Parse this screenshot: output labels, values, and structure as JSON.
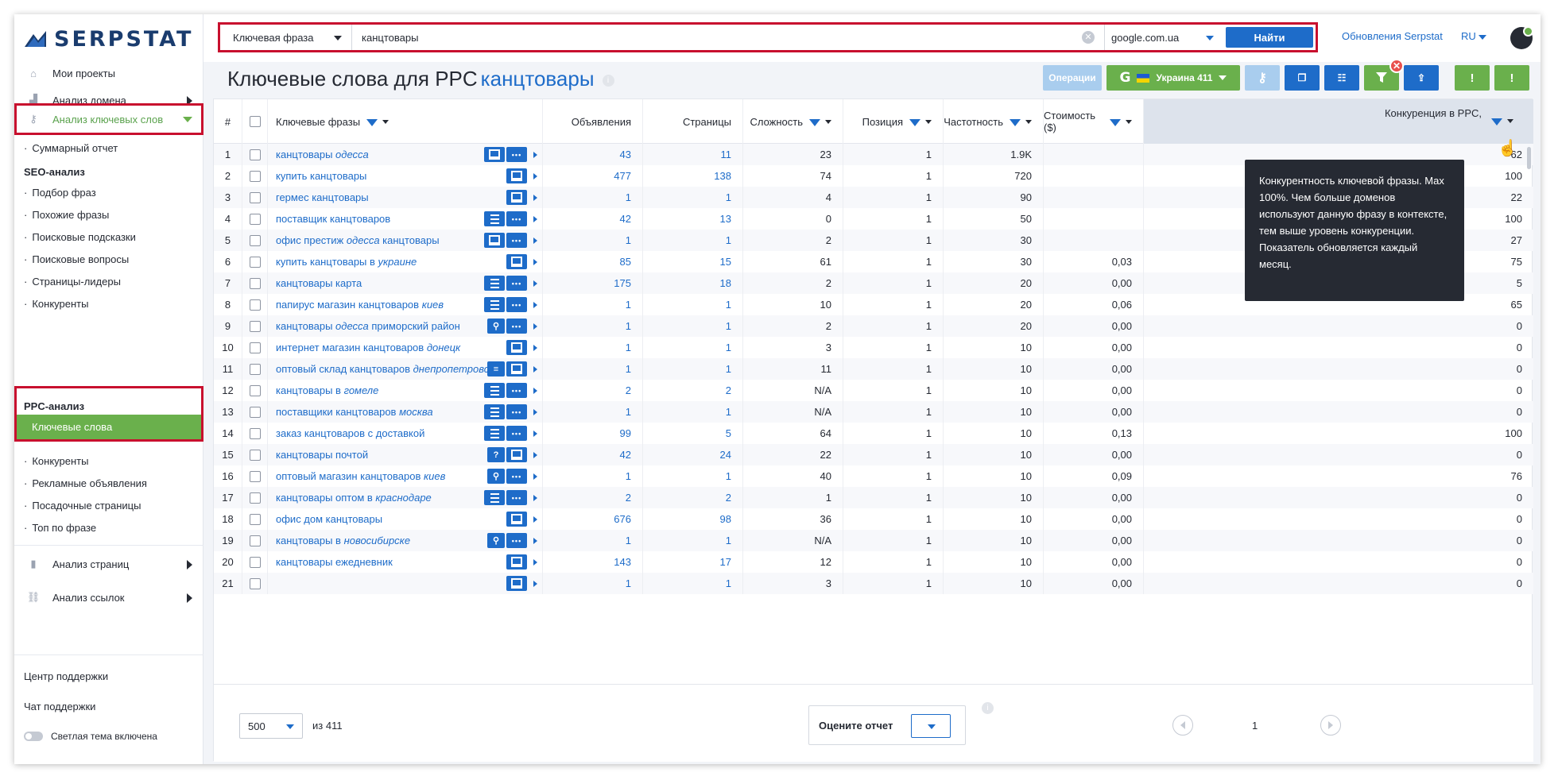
{
  "brand": {
    "name": "SERPSTAT"
  },
  "sidebar": {
    "my_projects": "Мои проекты",
    "domain_analysis": "Анализ домена",
    "keyword_analysis": "Анализ ключевых слов",
    "summary_report": "Суммарный отчет",
    "seo_head": "SEO-анализ",
    "seo_items": [
      "Подбор фраз",
      "Похожие фразы",
      "Поисковые подсказки",
      "Поисковые вопросы",
      "Страницы-лидеры",
      "Конкуренты"
    ],
    "ppc_head": "PPC-анализ",
    "ppc_active": "Ключевые слова",
    "ppc_items": [
      "Конкуренты",
      "Рекламные объявления",
      "Посадочные страницы",
      "Топ по фразе"
    ],
    "pages_analysis": "Анализ страниц",
    "links_analysis": "Анализ ссылок",
    "support_center": "Центр поддержки",
    "support_chat": "Чат поддержки",
    "theme_label": "Светлая тема включена"
  },
  "topbar": {
    "search_type": "Ключевая фраза",
    "search_value": "канцтовары",
    "database": "google.com.ua",
    "search_button": "Найти",
    "updates_link": "Обновления Serpstat",
    "language": "RU"
  },
  "page": {
    "title": "Ключевые слова для PPC",
    "keyword": "канцтовары"
  },
  "toolbar": {
    "operations": "Операции",
    "region": "Украина 411"
  },
  "table": {
    "headers": {
      "num": "#",
      "keywords": "Ключевые фразы",
      "ads": "Объявления",
      "pages": "Страницы",
      "difficulty": "Сложность",
      "position": "Позиция",
      "frequency": "Частотность",
      "cost": "Стоимость ($)",
      "competition": "Конкуренция в PPC,"
    },
    "rows": [
      {
        "n": "1",
        "kw": [
          [
            "канцтовары ",
            0
          ],
          [
            "одесса",
            1
          ]
        ],
        "btns": [
          "ad",
          "dots"
        ],
        "ads": "43",
        "pages": "11",
        "diff": "23",
        "pos": "1",
        "freq": "1.9K",
        "cost": "",
        "comp": "62"
      },
      {
        "n": "2",
        "kw": [
          [
            "купить канцтовары",
            0
          ]
        ],
        "btns": [
          "ad"
        ],
        "ads": "477",
        "pages": "138",
        "diff": "74",
        "pos": "1",
        "freq": "720",
        "cost": "",
        "comp": "100"
      },
      {
        "n": "3",
        "kw": [
          [
            "гермес канцтовары",
            0
          ]
        ],
        "btns": [
          "ad"
        ],
        "ads": "1",
        "pages": "1",
        "diff": "4",
        "pos": "1",
        "freq": "90",
        "cost": "",
        "comp": "22"
      },
      {
        "n": "4",
        "kw": [
          [
            "поставщик канцтоваров",
            0
          ]
        ],
        "btns": [
          "list",
          "dots"
        ],
        "ads": "42",
        "pages": "13",
        "diff": "0",
        "pos": "1",
        "freq": "50",
        "cost": "",
        "comp": "100"
      },
      {
        "n": "5",
        "kw": [
          [
            "офис престиж ",
            0
          ],
          [
            "одесса",
            1
          ],
          [
            " канцтовары",
            0
          ]
        ],
        "btns": [
          "ad",
          "dots"
        ],
        "ads": "1",
        "pages": "1",
        "diff": "2",
        "pos": "1",
        "freq": "30",
        "cost": "",
        "comp": "27"
      },
      {
        "n": "6",
        "kw": [
          [
            "купить канцтовары в ",
            0
          ],
          [
            "украине",
            1
          ]
        ],
        "btns": [
          "ad"
        ],
        "ads": "85",
        "pages": "15",
        "diff": "61",
        "pos": "1",
        "freq": "30",
        "cost": "0,03",
        "comp": "75"
      },
      {
        "n": "7",
        "kw": [
          [
            "канцтовары карта",
            0
          ]
        ],
        "btns": [
          "list",
          "dots"
        ],
        "ads": "175",
        "pages": "18",
        "diff": "2",
        "pos": "1",
        "freq": "20",
        "cost": "0,00",
        "comp": "5"
      },
      {
        "n": "8",
        "kw": [
          [
            "папирус магазин канцтоваров ",
            0
          ],
          [
            "киев",
            1
          ]
        ],
        "btns": [
          "list",
          "dots"
        ],
        "ads": "1",
        "pages": "1",
        "diff": "10",
        "pos": "1",
        "freq": "20",
        "cost": "0,06",
        "comp": "65"
      },
      {
        "n": "9",
        "kw": [
          [
            "канцтовары ",
            0
          ],
          [
            "одесса",
            1
          ],
          [
            " приморский район",
            0
          ]
        ],
        "btns": [
          "pin",
          "dots"
        ],
        "ads": "1",
        "pages": "1",
        "diff": "2",
        "pos": "1",
        "freq": "20",
        "cost": "0,00",
        "comp": "0"
      },
      {
        "n": "10",
        "kw": [
          [
            "интернет магазин канцтоваров ",
            0
          ],
          [
            "донецк",
            1
          ]
        ],
        "btns": [
          "ad"
        ],
        "ads": "1",
        "pages": "1",
        "diff": "3",
        "pos": "1",
        "freq": "10",
        "cost": "0,00",
        "comp": "0"
      },
      {
        "n": "11",
        "kw": [
          [
            "оптовый склад канцтоваров ",
            0
          ],
          [
            "днепропетровск",
            1
          ]
        ],
        "btns": [
          "eq",
          "ad"
        ],
        "ads": "1",
        "pages": "1",
        "diff": "11",
        "pos": "1",
        "freq": "10",
        "cost": "0,00",
        "comp": "0"
      },
      {
        "n": "12",
        "kw": [
          [
            "канцтовары в ",
            0
          ],
          [
            "гомеле",
            1
          ]
        ],
        "btns": [
          "list",
          "dots"
        ],
        "ads": "2",
        "pages": "2",
        "diff": "N/A",
        "pos": "1",
        "freq": "10",
        "cost": "0,00",
        "comp": "0"
      },
      {
        "n": "13",
        "kw": [
          [
            "поставщики канцтоваров ",
            0
          ],
          [
            "москва",
            1
          ]
        ],
        "btns": [
          "list",
          "dots"
        ],
        "ads": "1",
        "pages": "1",
        "diff": "N/A",
        "pos": "1",
        "freq": "10",
        "cost": "0,00",
        "comp": "0"
      },
      {
        "n": "14",
        "kw": [
          [
            "заказ канцтоваров с доставкой",
            0
          ]
        ],
        "btns": [
          "list",
          "dots"
        ],
        "ads": "99",
        "pages": "5",
        "diff": "64",
        "pos": "1",
        "freq": "10",
        "cost": "0,13",
        "comp": "100"
      },
      {
        "n": "15",
        "kw": [
          [
            "канцтовары почтой",
            0
          ]
        ],
        "btns": [
          "q",
          "ad"
        ],
        "ads": "42",
        "pages": "24",
        "diff": "22",
        "pos": "1",
        "freq": "10",
        "cost": "0,00",
        "comp": "0"
      },
      {
        "n": "16",
        "kw": [
          [
            "оптовый магазин канцтоваров ",
            0
          ],
          [
            "киев",
            1
          ]
        ],
        "btns": [
          "pin",
          "dots"
        ],
        "ads": "1",
        "pages": "1",
        "diff": "40",
        "pos": "1",
        "freq": "10",
        "cost": "0,09",
        "comp": "76"
      },
      {
        "n": "17",
        "kw": [
          [
            "канцтовары оптом в ",
            0
          ],
          [
            "краснодаре",
            1
          ]
        ],
        "btns": [
          "list",
          "dots"
        ],
        "ads": "2",
        "pages": "2",
        "diff": "1",
        "pos": "1",
        "freq": "10",
        "cost": "0,00",
        "comp": "0"
      },
      {
        "n": "18",
        "kw": [
          [
            "офис дом канцтовары",
            0
          ]
        ],
        "btns": [
          "ad"
        ],
        "ads": "676",
        "pages": "98",
        "diff": "36",
        "pos": "1",
        "freq": "10",
        "cost": "0,00",
        "comp": "0"
      },
      {
        "n": "19",
        "kw": [
          [
            "канцтовары в ",
            0
          ],
          [
            "новосибирске",
            1
          ]
        ],
        "btns": [
          "pin",
          "dots"
        ],
        "ads": "1",
        "pages": "1",
        "diff": "N/A",
        "pos": "1",
        "freq": "10",
        "cost": "0,00",
        "comp": "0"
      },
      {
        "n": "20",
        "kw": [
          [
            "канцтовары ежедневник",
            0
          ]
        ],
        "btns": [
          "ad"
        ],
        "ads": "143",
        "pages": "17",
        "diff": "12",
        "pos": "1",
        "freq": "10",
        "cost": "0,00",
        "comp": "0"
      },
      {
        "n": "21",
        "kw": [
          [
            "",
            0
          ]
        ],
        "btns": [
          "ad"
        ],
        "ads": "1",
        "pages": "1",
        "diff": "3",
        "pos": "1",
        "freq": "10",
        "cost": "0,00",
        "comp": "0"
      }
    ]
  },
  "tooltip": {
    "text": "Конкурентность ключевой фразы. Max 100%. Чем больше доменов используют данную фразу в контексте, тем выше уровень конкуренции. Показатель обновляется каждый месяц."
  },
  "footer": {
    "per_page": "500",
    "of_count": "из 411",
    "rate_label": "Оцените отчет",
    "page_number": "1"
  },
  "colors": {
    "accent_blue": "#1e6cc9",
    "green": "#6ab04c",
    "highlight_red": "#c8102e"
  }
}
